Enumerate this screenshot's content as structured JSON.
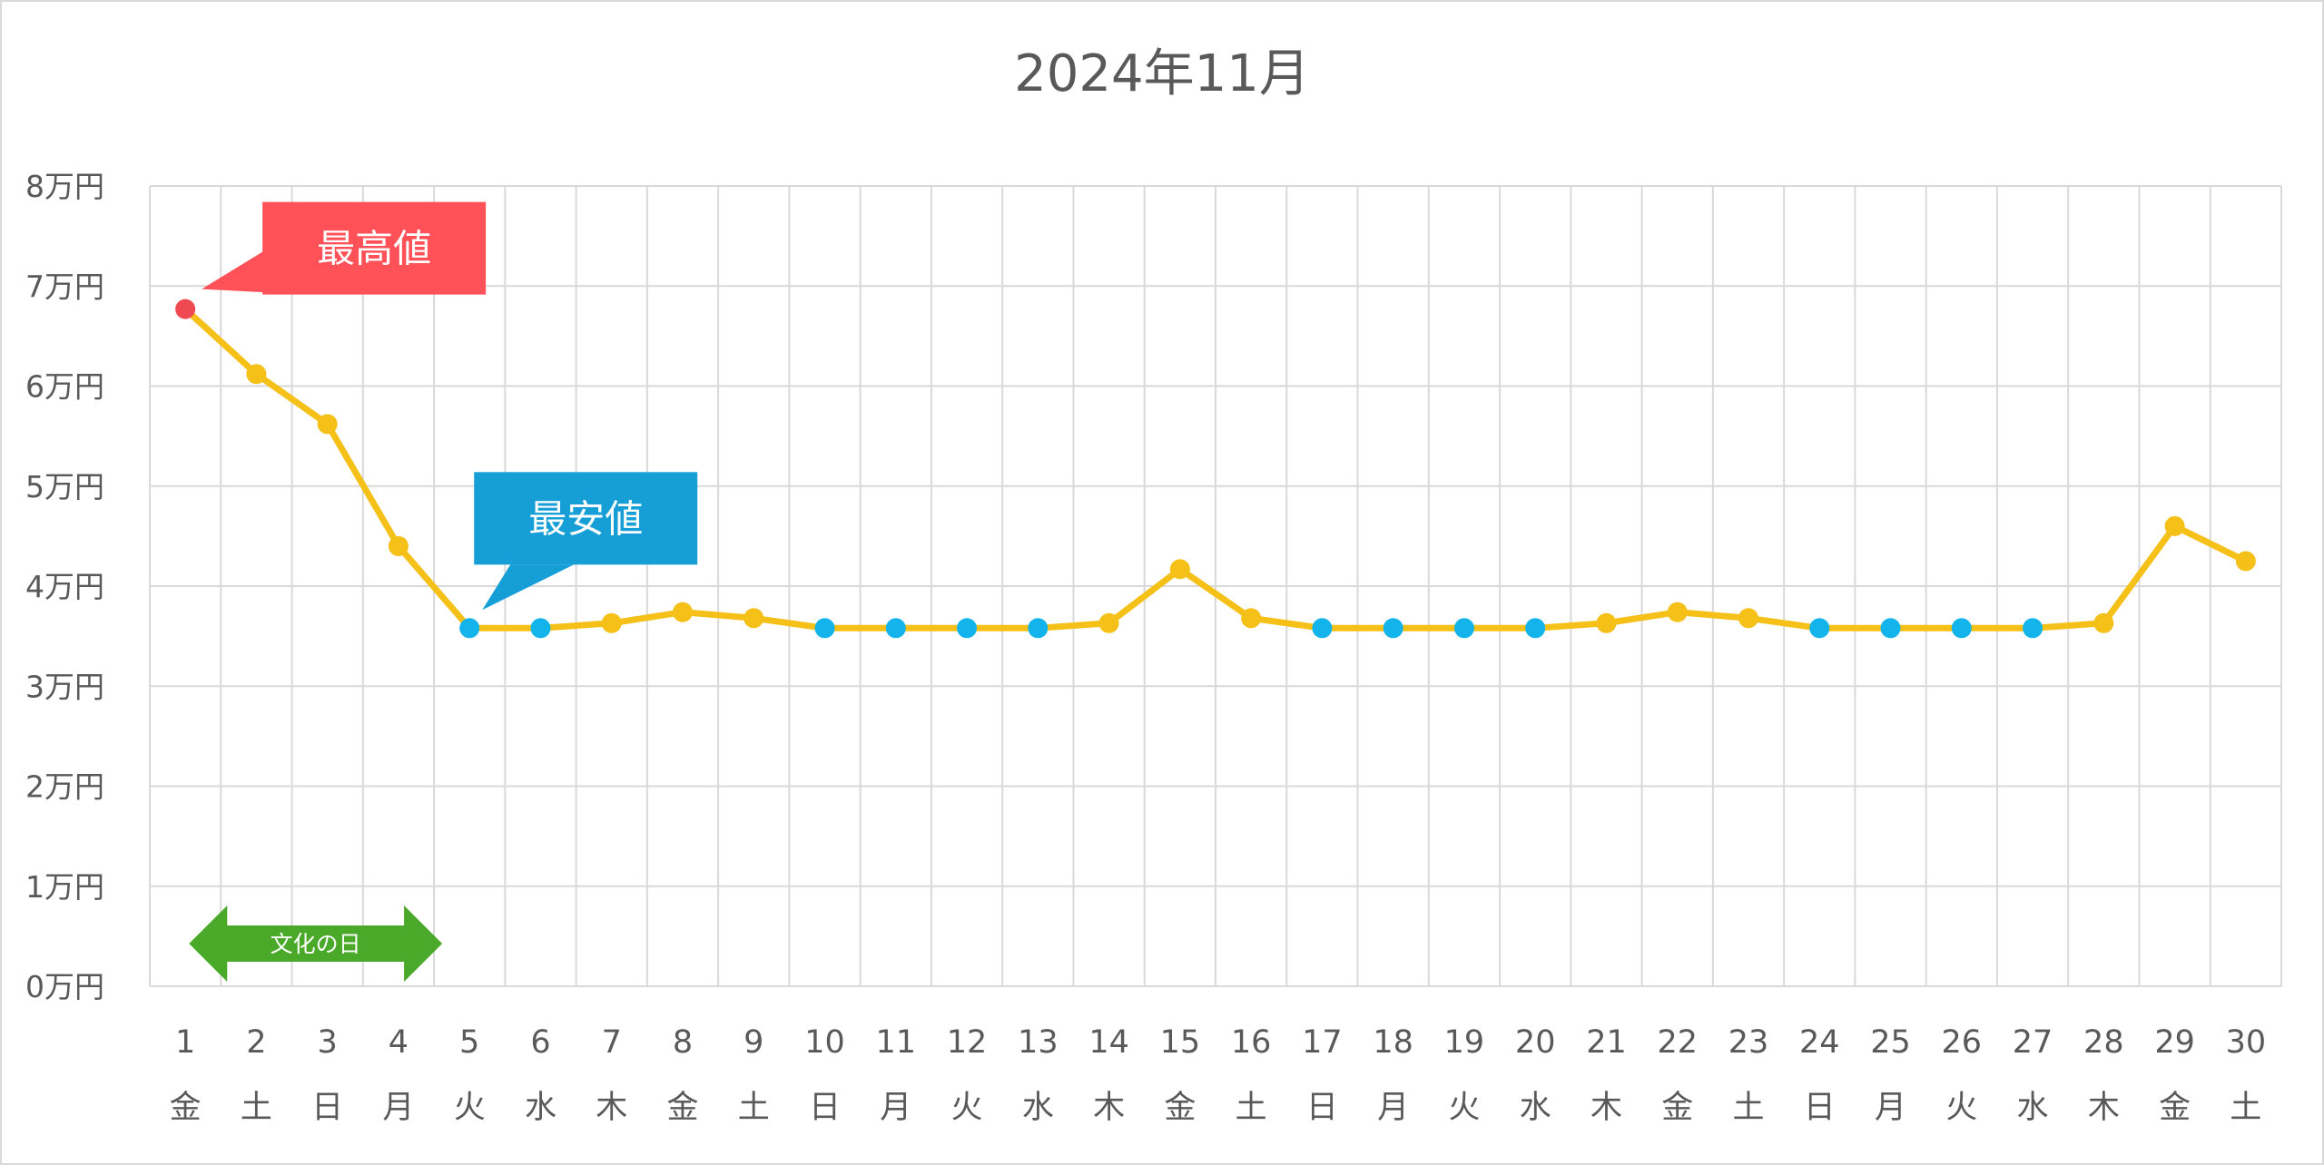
{
  "chart_data": {
    "type": "line",
    "title": "2024年11月",
    "y_unit_suffix": "万円",
    "ylim": [
      0,
      8
    ],
    "yticks": [
      0,
      1,
      2,
      3,
      4,
      5,
      6,
      7,
      8
    ],
    "ytick_labels": [
      "0万円",
      "1万円",
      "2万円",
      "3万円",
      "4万円",
      "5万円",
      "6万円",
      "7万円",
      "8万円"
    ],
    "grid": true,
    "x": [
      "1",
      "2",
      "3",
      "4",
      "5",
      "6",
      "7",
      "8",
      "9",
      "10",
      "11",
      "12",
      "13",
      "14",
      "15",
      "16",
      "17",
      "18",
      "19",
      "20",
      "21",
      "22",
      "23",
      "24",
      "25",
      "26",
      "27",
      "28",
      "29",
      "30"
    ],
    "weekdays": [
      "金",
      "土",
      "日",
      "月",
      "火",
      "水",
      "木",
      "金",
      "土",
      "日",
      "月",
      "火",
      "水",
      "木",
      "金",
      "土",
      "日",
      "月",
      "火",
      "水",
      "木",
      "金",
      "土",
      "日",
      "月",
      "火",
      "水",
      "木",
      "金",
      "土"
    ],
    "series": [
      {
        "values": [
          6.77,
          6.12,
          5.62,
          4.4,
          3.58,
          3.58,
          3.63,
          3.74,
          3.68,
          3.58,
          3.58,
          3.58,
          3.58,
          3.63,
          4.17,
          3.68,
          3.58,
          3.58,
          3.58,
          3.58,
          3.63,
          3.74,
          3.68,
          3.58,
          3.58,
          3.58,
          3.58,
          3.63,
          4.6,
          4.25
        ],
        "min_marker_days": [
          "5",
          "6",
          "10",
          "11",
          "12",
          "13",
          "17",
          "18",
          "19",
          "20",
          "24",
          "25",
          "26",
          "27"
        ],
        "max_marker_day": "1"
      }
    ],
    "annotations": {
      "max_label": "最高値",
      "min_label": "最安値",
      "holiday_label": "文化の日",
      "holiday_range": [
        "2",
        "4"
      ]
    },
    "colors": {
      "line": "#F5C018",
      "normal_marker": "#F5C018",
      "min_marker": "#12B4EB",
      "max_marker": "#EF4A52",
      "max_callout": "#FF5157",
      "min_callout": "#169FD6",
      "holiday_arrow": "#4BA92A",
      "grid": "#d9d9d9",
      "text": "#595959"
    }
  }
}
